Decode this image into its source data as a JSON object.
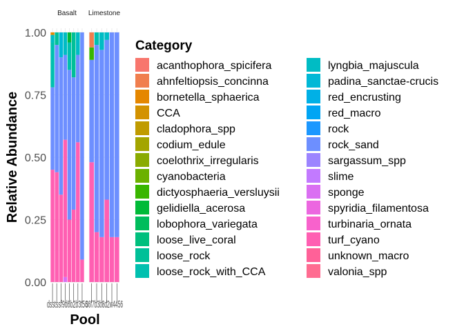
{
  "chart_data": {
    "type": "bar",
    "stacked": true,
    "facets": [
      "Basalt",
      "Limestone"
    ],
    "xlabel": "Pool",
    "ylabel": "Relative Abundance",
    "ylim": [
      0,
      1
    ],
    "yticks": [
      "0.00",
      "0.25",
      "0.50",
      "0.75",
      "1.00"
    ],
    "xtick_text": {
      "Basalt": "dsstssf9d6b2b3t56",
      "Limestone": "36f7b3b8d2w4456"
    },
    "legend_title": "Category",
    "legend_position": "right",
    "grid": true,
    "categories": [
      {
        "name": "acanthophora_spicifera",
        "color": "#F8766D"
      },
      {
        "name": "ahnfeltiopsis_concinna",
        "color": "#F07E4E"
      },
      {
        "name": "bornetella_sphaerica",
        "color": "#E58700"
      },
      {
        "name": "CCA",
        "color": "#D39200"
      },
      {
        "name": "cladophora_spp",
        "color": "#C09B00"
      },
      {
        "name": "codium_edule",
        "color": "#A3A500"
      },
      {
        "name": "coelothrix_irregularis",
        "color": "#8AAB00"
      },
      {
        "name": "cyanobacteria",
        "color": "#6BB100"
      },
      {
        "name": "dictyosphaeria_versluysii",
        "color": "#39B600"
      },
      {
        "name": "gelidiella_acerosa",
        "color": "#00BA38"
      },
      {
        "name": "lobophora_variegata",
        "color": "#00BD5C"
      },
      {
        "name": "loose_live_coral",
        "color": "#00BF7D"
      },
      {
        "name": "loose_rock",
        "color": "#00C098"
      },
      {
        "name": "loose_rock_with_CCA",
        "color": "#00C0AF"
      },
      {
        "name": "lyngbia_majuscula",
        "color": "#00BCC4"
      },
      {
        "name": "padina_sanctae-crucis",
        "color": "#00B8D6"
      },
      {
        "name": "red_encrusting",
        "color": "#00B0E6"
      },
      {
        "name": "red_macro",
        "color": "#00A5F4"
      },
      {
        "name": "rock",
        "color": "#1C98FF"
      },
      {
        "name": "rock_sand",
        "color": "#6D8FFF"
      },
      {
        "name": "sargassum_spp",
        "color": "#9C84FF"
      },
      {
        "name": "slime",
        "color": "#C27AFF"
      },
      {
        "name": "sponge",
        "color": "#DA6FF2"
      },
      {
        "name": "spyridia_filamentosa",
        "color": "#EC67E0"
      },
      {
        "name": "turbinaria_ornata",
        "color": "#F862CC"
      },
      {
        "name": "turf_cyano",
        "color": "#FF5FB2"
      },
      {
        "name": "unknown_macro",
        "color": "#FF6198"
      },
      {
        "name": "valonia_spp",
        "color": "#FF6C91"
      }
    ],
    "bars": {
      "Basalt": [
        {
          "segments": [
            {
              "c": "turf_cyano",
              "v": 0.45
            },
            {
              "c": "rock_sand",
              "v": 0.33
            },
            {
              "c": "loose_rock_with_CCA",
              "v": 0.18
            },
            {
              "c": "lyngbia_majuscula",
              "v": 0.03
            },
            {
              "c": "bornetella_sphaerica",
              "v": 0.01
            }
          ]
        },
        {
          "segments": [
            {
              "c": "turf_cyano",
              "v": 0.44
            },
            {
              "c": "rock_sand",
              "v": 0.51
            },
            {
              "c": "loose_rock",
              "v": 0.05
            }
          ]
        },
        {
          "segments": [
            {
              "c": "turf_cyano",
              "v": 0.35
            },
            {
              "c": "rock_sand",
              "v": 0.55
            },
            {
              "c": "padina_sanctae-crucis",
              "v": 0.1
            }
          ]
        },
        {
          "segments": [
            {
              "c": "sponge",
              "v": 0.02
            },
            {
              "c": "turf_cyano",
              "v": 0.55
            },
            {
              "c": "rock_sand",
              "v": 0.34
            },
            {
              "c": "lyngbia_majuscula",
              "v": 0.09
            }
          ]
        },
        {
          "segments": [
            {
              "c": "turf_cyano",
              "v": 0.25
            },
            {
              "c": "rock_sand",
              "v": 0.6
            },
            {
              "c": "loose_rock_with_CCA",
              "v": 0.11
            },
            {
              "c": "gelidiella_acerosa",
              "v": 0.04
            }
          ]
        },
        {
          "segments": [
            {
              "c": "turf_cyano",
              "v": 0.29
            },
            {
              "c": "rock_sand",
              "v": 0.53
            },
            {
              "c": "loose_rock",
              "v": 0.18
            }
          ]
        },
        {
          "segments": [
            {
              "c": "turf_cyano",
              "v": 0.56
            },
            {
              "c": "rock_sand",
              "v": 0.35
            },
            {
              "c": "lyngbia_majuscula",
              "v": 0.09
            }
          ]
        },
        {
          "segments": [
            {
              "c": "turf_cyano",
              "v": 0.09
            },
            {
              "c": "rock_sand",
              "v": 0.91
            }
          ]
        }
      ],
      "Limestone": [
        {
          "segments": [
            {
              "c": "turf_cyano",
              "v": 0.48
            },
            {
              "c": "rock_sand",
              "v": 0.41
            },
            {
              "c": "dictyosphaeria_versluysii",
              "v": 0.05
            },
            {
              "c": "ahnfeltiopsis_concinna",
              "v": 0.06
            }
          ]
        },
        {
          "segments": [
            {
              "c": "turf_cyano",
              "v": 0.2
            },
            {
              "c": "rock_sand",
              "v": 0.75
            },
            {
              "c": "loose_rock_with_CCA",
              "v": 0.05
            }
          ]
        },
        {
          "segments": [
            {
              "c": "turf_cyano",
              "v": 0.18
            },
            {
              "c": "rock_sand",
              "v": 0.75
            },
            {
              "c": "lyngbia_majuscula",
              "v": 0.07
            }
          ]
        },
        {
          "segments": [
            {
              "c": "turf_cyano",
              "v": 0.33
            },
            {
              "c": "rock_sand",
              "v": 0.64
            },
            {
              "c": "lyngbia_majuscula",
              "v": 0.03
            }
          ]
        },
        {
          "segments": [
            {
              "c": "turf_cyano",
              "v": 0.18
            },
            {
              "c": "rock_sand",
              "v": 0.82
            }
          ]
        },
        {
          "segments": [
            {
              "c": "turf_cyano",
              "v": 0.18
            },
            {
              "c": "rock_sand",
              "v": 0.82
            }
          ]
        }
      ]
    }
  }
}
